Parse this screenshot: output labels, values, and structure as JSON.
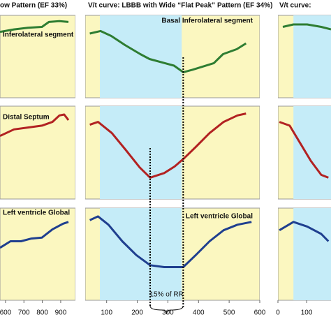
{
  "chart_data": [
    {
      "type": "line",
      "title": "ow Pattern (EF 33%)",
      "xlim": [
        570,
        980
      ],
      "xticks": [
        600,
        700,
        800,
        900
      ],
      "ylim": [
        0,
        100
      ],
      "shaded": [],
      "panels": [
        {
          "label": "Inferolateral segment",
          "color": "#2e7d32",
          "x": [
            570,
            646,
            722,
            798,
            836,
            893,
            942
          ],
          "values": [
            80,
            83,
            85,
            86,
            92,
            93,
            92
          ]
        },
        {
          "label": "Distal  Septum",
          "color": "#b22222",
          "x": [
            570,
            646,
            722,
            798,
            855,
            893,
            919,
            942
          ],
          "values": [
            68,
            75,
            77,
            79,
            83,
            90,
            91,
            85
          ]
        },
        {
          "label": "Left ventricle Global",
          "color": "#1f3f8f",
          "x": [
            570,
            627,
            684,
            741,
            798,
            855,
            912,
            942
          ],
          "values": [
            57,
            64,
            64,
            67,
            68,
            77,
            83,
            85
          ]
        }
      ]
    },
    {
      "type": "line",
      "title": "V/t curve:  LBBB  with Wide “Flat Peak” Pattern (EF 34%)",
      "xlim": [
        30,
        600
      ],
      "xticks": [
        100,
        200,
        300,
        400,
        500,
        600
      ],
      "ylim": [
        0,
        100
      ],
      "shaded": [
        78,
        345
      ],
      "markers": [
        242,
        350
      ],
      "annotation": "15% of RR",
      "panels": [
        {
          "label": "Basal Inferolateral segment",
          "color": "#2e7d32",
          "x": [
            45,
            80,
            115,
            160,
            210,
            240,
            290,
            320,
            350,
            380,
            415,
            450,
            480,
            525,
            555
          ],
          "values": [
            78,
            81,
            75,
            64,
            53,
            47,
            42,
            39,
            31,
            34,
            38,
            42,
            53,
            59,
            66
          ]
        },
        {
          "color": "#b22222",
          "x": [
            45,
            72,
            117,
            162,
            208,
            242,
            288,
            322,
            350,
            391,
            436,
            482,
            527,
            555
          ],
          "values": [
            80,
            83,
            71,
            53,
            34,
            23,
            28,
            35,
            43,
            56,
            71,
            83,
            90,
            92
          ]
        },
        {
          "label": "Left ventricle Global",
          "color": "#1f3f8f",
          "x": [
            45,
            72,
            106,
            151,
            197,
            242,
            288,
            350,
            391,
            436,
            482,
            527,
            573
          ],
          "values": [
            87,
            91,
            82,
            64,
            49,
            38,
            36,
            36,
            49,
            64,
            76,
            82,
            85
          ]
        }
      ]
    },
    {
      "type": "line",
      "title": "V/t curve:",
      "xlim": [
        0,
        185
      ],
      "xticks": [
        0,
        100
      ],
      "ylim": [
        0,
        100
      ],
      "shaded": [
        54,
        185
      ],
      "panels": [
        {
          "color": "#2e7d32",
          "x": [
            17,
            54,
            102,
            151,
            185
          ],
          "values": [
            86,
            89,
            89,
            86,
            83
          ]
        },
        {
          "color": "#b22222",
          "x": [
            5,
            41,
            78,
            115,
            151,
            176
          ],
          "values": [
            83,
            79,
            60,
            41,
            26,
            23
          ]
        },
        {
          "color": "#1f3f8f",
          "x": [
            5,
            54,
            102,
            151,
            176
          ],
          "values": [
            76,
            85,
            80,
            72,
            64
          ]
        }
      ]
    }
  ]
}
